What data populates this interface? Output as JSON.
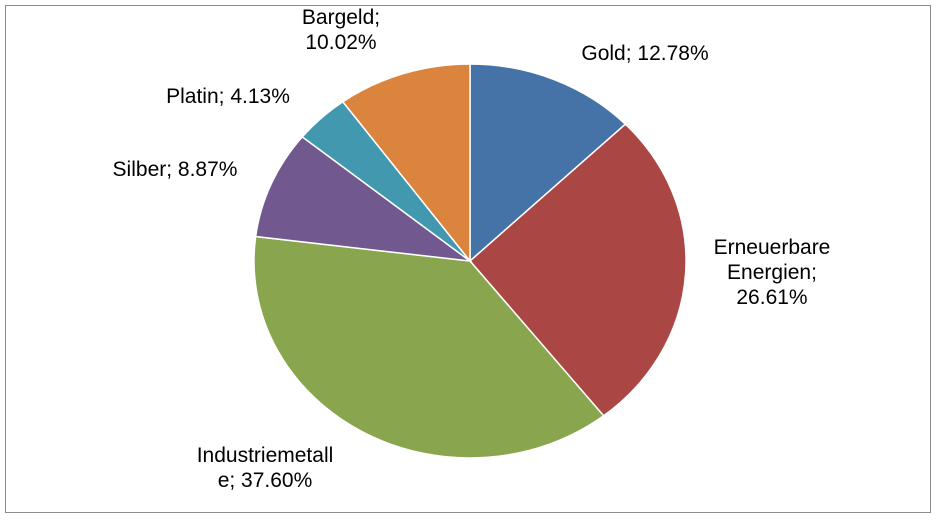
{
  "chart_data": {
    "type": "pie",
    "title": "",
    "slices": [
      {
        "name": "Gold",
        "value": 12.78,
        "color": "#4572A7",
        "label_lines": [
          "Gold;  12.78%"
        ]
      },
      {
        "name": "Erneuerbare Energien",
        "value": 26.61,
        "color": "#AA4643",
        "label_lines": [
          "Erneuerbare",
          "Energien;",
          "26.61%"
        ]
      },
      {
        "name": "Industriemetalle",
        "value": 37.6,
        "color": "#89A54E",
        "label_lines": [
          "Industriemetall",
          "e; 37.60%"
        ]
      },
      {
        "name": "Silber",
        "value": 8.87,
        "color": "#71588F",
        "label_lines": [
          "Silber; 8.87%"
        ]
      },
      {
        "name": "Platin",
        "value": 4.13,
        "color": "#4198AF",
        "label_lines": [
          "Platin; 4.13%"
        ]
      },
      {
        "name": "Bargeld",
        "value": 10.02,
        "color": "#DB843D",
        "label_lines": [
          "Bargeld;",
          "10.02%"
        ]
      }
    ]
  }
}
